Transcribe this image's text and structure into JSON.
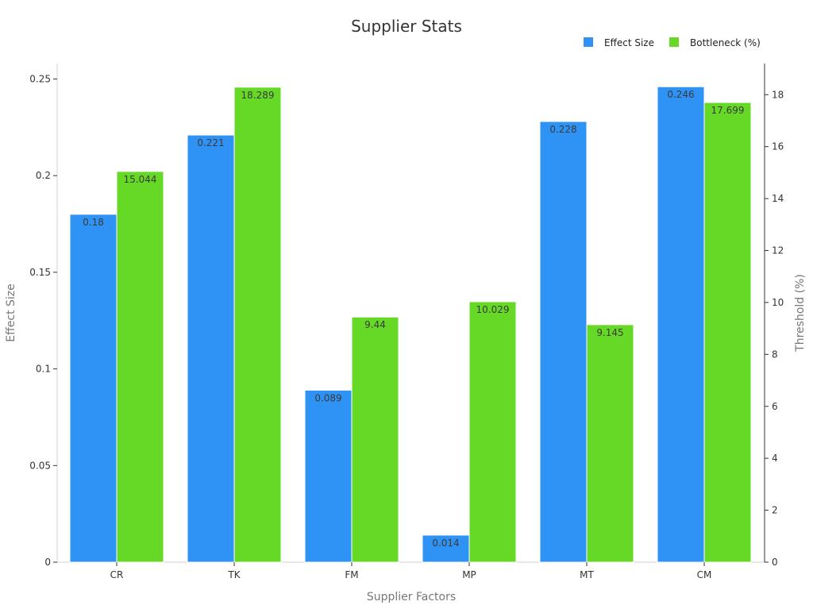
{
  "chart_data": {
    "type": "bar",
    "title": "Supplier Stats",
    "xlabel": "Supplier Factors",
    "ylabel": "Effect Size",
    "y2label": "Threshold (%)",
    "categories": [
      "CR",
      "TK",
      "FM",
      "MP",
      "MT",
      "CM"
    ],
    "series": [
      {
        "name": "Effect Size",
        "axis": "left",
        "color": "#2f92f5",
        "values": [
          0.18,
          0.221,
          0.089,
          0.014,
          0.228,
          0.246
        ],
        "labels": [
          "0.18",
          "0.221",
          "0.089",
          "0.014",
          "0.228",
          "0.246"
        ]
      },
      {
        "name": "Bottleneck (%)",
        "axis": "right",
        "color": "#66d926",
        "values": [
          15.044,
          18.289,
          9.44,
          10.029,
          9.145,
          17.699
        ],
        "labels": [
          "15.044",
          "18.289",
          "9.44",
          "10.029",
          "9.145",
          "17.699"
        ]
      }
    ],
    "ylim": [
      0,
      0.258
    ],
    "y2lim": [
      0,
      19.2
    ],
    "yticks": [
      0,
      0.05,
      0.1,
      0.15,
      0.2,
      0.25
    ],
    "ytick_labels": [
      "0",
      "0.05",
      "0.1",
      "0.15",
      "0.2",
      "0.25"
    ],
    "y2ticks": [
      0,
      2,
      4,
      6,
      8,
      10,
      12,
      14,
      16,
      18
    ],
    "y2tick_labels": [
      "0",
      "2",
      "4",
      "6",
      "8",
      "10",
      "12",
      "14",
      "16",
      "18"
    ],
    "grid": false,
    "legend_position": "top-right"
  }
}
